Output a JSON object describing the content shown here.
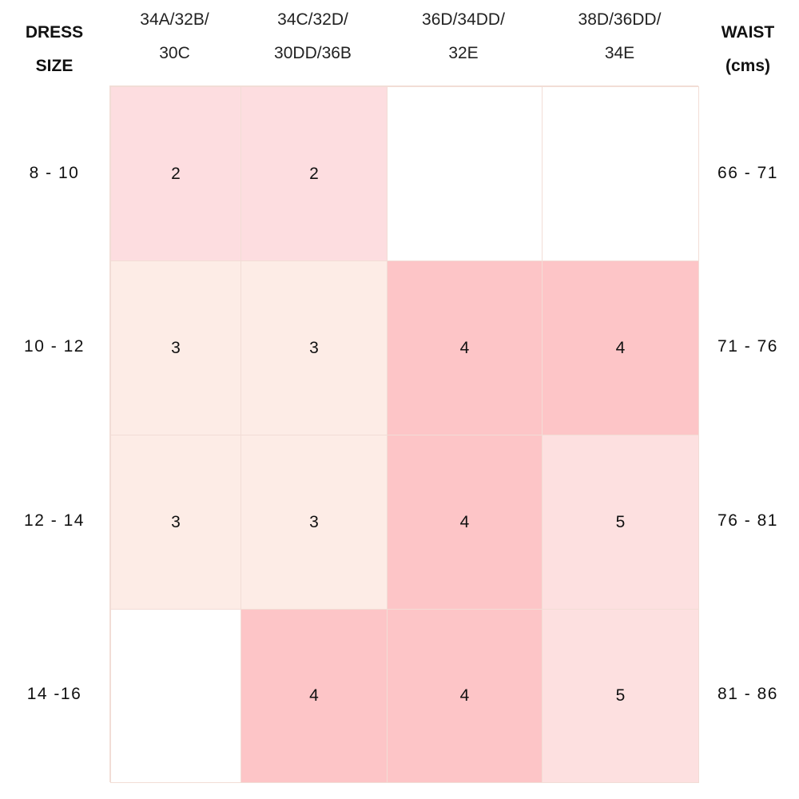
{
  "header": {
    "dress_size": "DRESS\nSIZE",
    "waist": "WAIST\n(cms)",
    "columns": [
      "34A/32B/\n30C",
      "34C/32D/\n30DD/36B",
      "36D/34DD/\n32E",
      "38D/36DD/\n34E"
    ]
  },
  "colors": {
    "fit_2": "#fddde0",
    "fit_3": "#fdece6",
    "fit_4": "#fdc5c7",
    "fit_5": "#fde0e0",
    "empty": "#ffffff",
    "grid_line": "#f2ddd6"
  },
  "rows": [
    {
      "dress_size": "8 - 10",
      "waist": "66 - 71",
      "cells": [
        "2",
        "2",
        "",
        ""
      ]
    },
    {
      "dress_size": "10 - 12",
      "waist": "71 - 76",
      "cells": [
        "3",
        "3",
        "4",
        "4"
      ]
    },
    {
      "dress_size": "12 - 14",
      "waist": "76 - 81",
      "cells": [
        "3",
        "3",
        "4",
        "5"
      ]
    },
    {
      "dress_size": "14 -16",
      "waist": "81 - 86",
      "cells": [
        "",
        "4",
        "4",
        "5"
      ]
    }
  ]
}
